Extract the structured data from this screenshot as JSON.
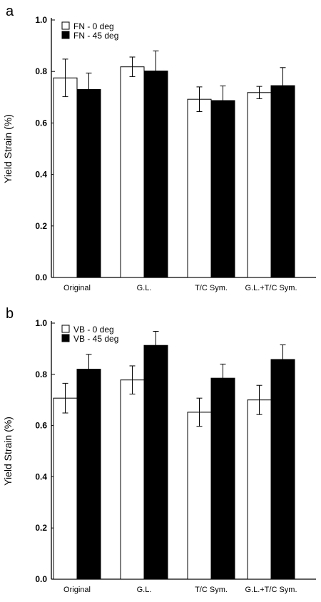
{
  "chart_data": [
    {
      "panel_label": "a",
      "type": "bar",
      "ylabel": "Yield Strain (%)",
      "ylim": [
        0,
        1.0
      ],
      "yticks": [
        "0.0",
        "0.2",
        "0.4",
        "0.6",
        "0.8",
        "1.0"
      ],
      "categories": [
        "Original",
        "G.L.",
        "T/C Sym.",
        "G.L.+T/C Sym."
      ],
      "legend_position": "top-left",
      "series": [
        {
          "name": "FN - 0 deg",
          "color": "#ffffff",
          "values": [
            0.775,
            0.818,
            0.692,
            0.718
          ],
          "errors": [
            0.073,
            0.038,
            0.048,
            0.024
          ]
        },
        {
          "name": "FN - 45 deg",
          "color": "#000000",
          "values": [
            0.73,
            0.802,
            0.687,
            0.745
          ],
          "errors": [
            0.064,
            0.078,
            0.057,
            0.07
          ]
        }
      ]
    },
    {
      "panel_label": "b",
      "type": "bar",
      "ylabel": "Yield Strain (%)",
      "ylim": [
        0,
        1.0
      ],
      "yticks": [
        "0.0",
        "0.2",
        "0.4",
        "0.6",
        "0.8",
        "1.0"
      ],
      "categories": [
        "Original",
        "G.L.",
        "T/C Sym.",
        "G.L.+T/C Sym."
      ],
      "legend_position": "top-left",
      "series": [
        {
          "name": "VB - 0 deg",
          "color": "#ffffff",
          "values": [
            0.707,
            0.778,
            0.652,
            0.7
          ],
          "errors": [
            0.058,
            0.055,
            0.055,
            0.057
          ]
        },
        {
          "name": "VB - 45 deg",
          "color": "#000000",
          "values": [
            0.82,
            0.913,
            0.785,
            0.858
          ],
          "errors": [
            0.058,
            0.055,
            0.055,
            0.057
          ]
        }
      ]
    }
  ]
}
